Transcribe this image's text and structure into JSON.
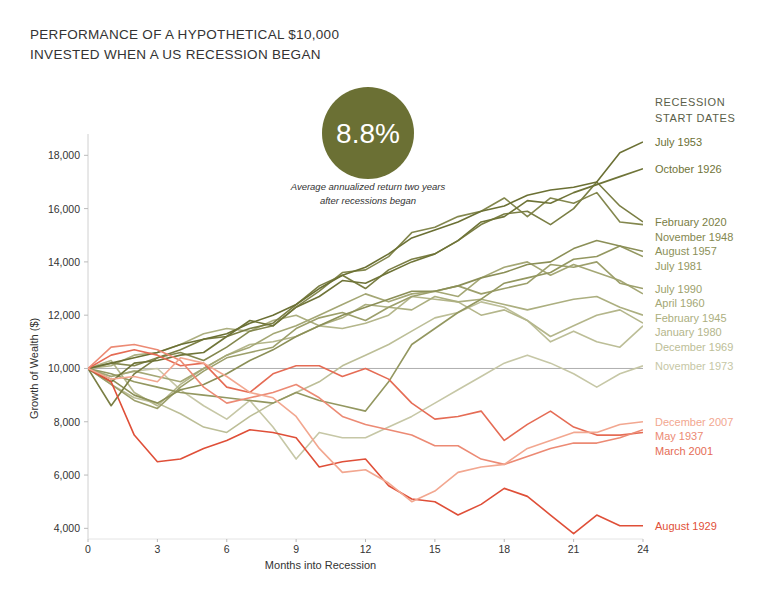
{
  "chart_data": {
    "type": "line",
    "title": [
      "PERFORMANCE OF A HYPOTHETICAL $10,000",
      "INVESTED WHEN A US RECESSION BEGAN"
    ],
    "annotation": {
      "value": "8.8%",
      "caption": [
        "Average annualized return two years",
        "after recessions began"
      ],
      "color": "#6b7034"
    },
    "x_label": "Months into Recession",
    "y_label": "Growth of Wealth ($)",
    "legend_title": [
      "RECESSION",
      "START DATES"
    ],
    "legend": "right",
    "grid": false,
    "baseline": 10000,
    "xlim": [
      0,
      24
    ],
    "ylim": [
      3600,
      18800
    ],
    "xticks": [
      0,
      3,
      6,
      9,
      12,
      15,
      18,
      21,
      24
    ],
    "yticks": [
      {
        "value": 4000,
        "label": "4,000"
      },
      {
        "value": 6000,
        "label": "6,000"
      },
      {
        "value": 8000,
        "label": "8,000"
      },
      {
        "value": 10000,
        "label": "10,000"
      },
      {
        "value": 12000,
        "label": "12,000"
      },
      {
        "value": 14000,
        "label": "14,000"
      },
      {
        "value": 16000,
        "label": "16,000"
      },
      {
        "value": 18000,
        "label": "18,000"
      }
    ],
    "x": [
      0,
      1,
      2,
      3,
      4,
      5,
      6,
      7,
      8,
      9,
      10,
      11,
      12,
      13,
      14,
      15,
      16,
      17,
      18,
      19,
      20,
      21,
      22,
      23,
      24
    ],
    "series": [
      {
        "name": "July 1953",
        "color": "#6b7034",
        "values": [
          10000,
          10200,
          10400,
          10600,
          10900,
          11100,
          11300,
          11700,
          12000,
          12400,
          13000,
          13500,
          13800,
          14300,
          14900,
          15200,
          15500,
          15900,
          16100,
          16500,
          16700,
          16800,
          17000,
          18100,
          18500
        ]
      },
      {
        "name": "October 1926",
        "color": "#6f7438",
        "values": [
          10000,
          9500,
          10200,
          10300,
          10500,
          10600,
          11200,
          11800,
          11600,
          12300,
          12700,
          13300,
          13200,
          13600,
          14000,
          14300,
          14800,
          15500,
          15700,
          16300,
          16200,
          16600,
          16900,
          17200,
          17500
        ]
      },
      {
        "name": "February 2020",
        "color": "#7a7e44",
        "values": [
          10000,
          8600,
          9800,
          10400,
          10700,
          11100,
          11200,
          11500,
          11700,
          12400,
          13100,
          13500,
          13000,
          13700,
          14100,
          14300,
          14800,
          15400,
          15800,
          15900,
          15400,
          16000,
          17000,
          16100,
          15500
        ]
      },
      {
        "name": "November 1948",
        "color": "#83874e",
        "values": [
          10000,
          10200,
          10100,
          10400,
          10600,
          10300,
          10800,
          11400,
          11600,
          12300,
          12900,
          13600,
          13700,
          14200,
          15100,
          15300,
          15700,
          15900,
          16400,
          15700,
          16400,
          16200,
          16600,
          15500,
          15400
        ]
      },
      {
        "name": "August 1957",
        "color": "#8b8f57",
        "values": [
          10000,
          9600,
          9000,
          8700,
          9200,
          9400,
          9800,
          10300,
          10700,
          11200,
          11600,
          12000,
          12300,
          12600,
          12900,
          12900,
          13100,
          13400,
          13600,
          13900,
          14000,
          14500,
          14800,
          14600,
          14400
        ]
      },
      {
        "name": "July 1981",
        "color": "#939760",
        "values": [
          10000,
          9800,
          9500,
          9300,
          9100,
          9000,
          8900,
          8800,
          8700,
          9100,
          8800,
          8600,
          8400,
          9500,
          10900,
          11500,
          12100,
          12600,
          13200,
          13400,
          13600,
          14100,
          14200,
          14600,
          14200
        ]
      },
      {
        "name": "July 1990",
        "color": "#9c9f6b",
        "values": [
          10000,
          9400,
          8800,
          8500,
          9300,
          9900,
          10400,
          10600,
          10800,
          11500,
          11900,
          12100,
          11800,
          12300,
          12700,
          12900,
          13100,
          12800,
          13000,
          13200,
          13900,
          13800,
          14000,
          13200,
          13000
        ]
      },
      {
        "name": "April 1960",
        "color": "#a4a775",
        "values": [
          10000,
          9700,
          9900,
          9700,
          9500,
          10000,
          10500,
          10800,
          11300,
          11600,
          12000,
          12400,
          12800,
          12500,
          12800,
          12900,
          12700,
          13400,
          13800,
          14000,
          13500,
          13900,
          13600,
          13300,
          12800
        ]
      },
      {
        "name": "February 1945",
        "color": "#acaf80",
        "values": [
          10000,
          10100,
          10500,
          10600,
          10900,
          11300,
          11500,
          11400,
          11800,
          12000,
          11600,
          11900,
          12400,
          12300,
          12200,
          12700,
          12500,
          12600,
          12400,
          12200,
          12400,
          12600,
          12700,
          12300,
          12000
        ]
      },
      {
        "name": "January 1980",
        "color": "#b4b68b",
        "values": [
          10000,
          10300,
          9100,
          8600,
          9400,
          10000,
          10500,
          10900,
          11000,
          11200,
          11600,
          11500,
          11700,
          12000,
          12700,
          12600,
          12500,
          12000,
          12200,
          11800,
          11200,
          11600,
          12000,
          12200,
          11700
        ]
      },
      {
        "name": "December 1969",
        "color": "#bcbe97",
        "values": [
          10000,
          9400,
          8900,
          8700,
          8300,
          7800,
          7600,
          8200,
          8700,
          9100,
          9500,
          10100,
          10500,
          10900,
          11400,
          11900,
          12100,
          12500,
          12300,
          11800,
          11000,
          11400,
          11000,
          10800,
          11600
        ]
      },
      {
        "name": "November 1973",
        "color": "#c6c7a6",
        "values": [
          10000,
          9700,
          9900,
          10000,
          9200,
          8600,
          8100,
          8800,
          7800,
          6600,
          7600,
          7400,
          7400,
          7800,
          8200,
          8700,
          9200,
          9700,
          10200,
          10500,
          10200,
          9800,
          9300,
          9800,
          10100
        ]
      },
      {
        "name": "December 2007",
        "color": "#f2a790",
        "values": [
          10000,
          9600,
          9700,
          9500,
          10400,
          10200,
          9700,
          9100,
          8900,
          8200,
          7000,
          6100,
          6200,
          5700,
          5000,
          5400,
          6100,
          6300,
          6400,
          7000,
          7300,
          7600,
          7600,
          7900,
          8000
        ]
      },
      {
        "name": "May 1937",
        "color": "#ec8a74",
        "values": [
          10000,
          10800,
          10900,
          10700,
          10300,
          9300,
          8700,
          8900,
          9100,
          9400,
          8900,
          8200,
          7900,
          7700,
          7500,
          7100,
          7100,
          6600,
          6400,
          6700,
          7000,
          7200,
          7200,
          7400,
          7700
        ]
      },
      {
        "name": "March 2001",
        "color": "#e56c55",
        "values": [
          10000,
          10500,
          10700,
          10500,
          10100,
          10200,
          9300,
          9100,
          9800,
          10100,
          10100,
          9700,
          10000,
          9600,
          8700,
          8100,
          8200,
          8400,
          7300,
          7900,
          8400,
          7800,
          7500,
          7500,
          7600
        ]
      },
      {
        "name": "August 1929",
        "color": "#df4f38",
        "values": [
          10000,
          9500,
          7500,
          6500,
          6600,
          7000,
          7300,
          7700,
          7600,
          7400,
          6300,
          6500,
          6600,
          5600,
          5100,
          5000,
          4500,
          4900,
          5500,
          5200,
          4500,
          3800,
          4500,
          4100,
          4100
        ]
      }
    ]
  }
}
